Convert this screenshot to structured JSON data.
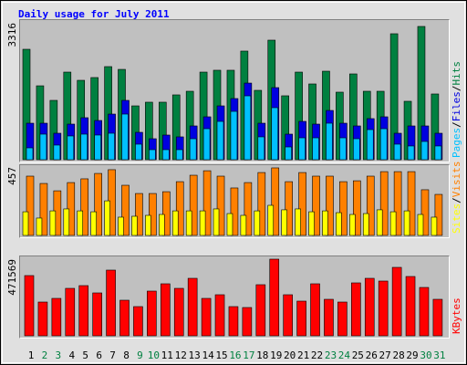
{
  "title": "Daily usage for July 2011",
  "chart_data": [
    {
      "type": "bar",
      "ylim": [
        0,
        3316
      ],
      "yticks": [
        3316
      ],
      "series": [
        {
          "name": "Hits",
          "color": "#008040",
          "values": [
            2675,
            1790,
            1437,
            2122,
            1923,
            1990,
            2255,
            2188,
            1304,
            1393,
            1393,
            1570,
            1658,
            2122,
            2167,
            2167,
            2631,
            1680,
            2896,
            1548,
            2122,
            1835,
            2144,
            1636,
            2078,
            1658,
            1658,
            3051,
            1415,
            3228,
            1592
          ]
        },
        {
          "name": "Files",
          "color": "#0000e0",
          "values": [
            884,
            884,
            641,
            862,
            1017,
            950,
            1105,
            1437,
            663,
            508,
            597,
            553,
            818,
            1039,
            1304,
            1481,
            1856,
            884,
            1746,
            619,
            928,
            862,
            1193,
            884,
            818,
            995,
            1039,
            641,
            818,
            818,
            641
          ]
        },
        {
          "name": "Pages",
          "color": "#00c0ff",
          "values": [
            287,
            619,
            354,
            575,
            619,
            597,
            641,
            1105,
            376,
            243,
            243,
            243,
            508,
            751,
            928,
            1171,
            1547,
            553,
            1260,
            309,
            530,
            530,
            884,
            530,
            508,
            729,
            751,
            376,
            332,
            442,
            332
          ]
        }
      ]
    },
    {
      "type": "bar",
      "ylim": [
        0,
        457
      ],
      "yticks": [
        457
      ],
      "series": [
        {
          "name": "Visits",
          "color": "#ff8000",
          "values": [
            396,
            347,
            298,
            353,
            378,
            414,
            439,
            335,
            280,
            280,
            292,
            359,
            402,
            432,
            396,
            317,
            353,
            420,
            451,
            359,
            420,
            396,
            396,
            359,
            365,
            396,
            426,
            426,
            426,
            305,
            274
          ]
        },
        {
          "name": "Sites",
          "color": "#ffff00",
          "values": [
            158,
            116,
            164,
            177,
            164,
            158,
            231,
            122,
            128,
            134,
            140,
            164,
            164,
            164,
            177,
            146,
            134,
            164,
            201,
            171,
            177,
            158,
            164,
            152,
            140,
            146,
            171,
            158,
            164,
            140,
            122
          ]
        }
      ]
    },
    {
      "type": "bar",
      "ylim": [
        0,
        471569
      ],
      "yticks": [
        471569
      ],
      "categories": [
        "1",
        "2",
        "3",
        "4",
        "5",
        "6",
        "7",
        "8",
        "9",
        "10",
        "11",
        "12",
        "13",
        "14",
        "15",
        "16",
        "17",
        "18",
        "19",
        "20",
        "21",
        "22",
        "23",
        "24",
        "25",
        "26",
        "27",
        "28",
        "29",
        "30",
        "31"
      ],
      "category_colors": [
        "#000000",
        "#008040",
        "#008040",
        "#000000",
        "#000000",
        "#000000",
        "#000000",
        "#000000",
        "#008040",
        "#008040",
        "#000000",
        "#000000",
        "#000000",
        "#000000",
        "#000000",
        "#008040",
        "#008040",
        "#000000",
        "#000000",
        "#000000",
        "#000000",
        "#000000",
        "#008040",
        "#008040",
        "#000000",
        "#000000",
        "#000000",
        "#000000",
        "#000000",
        "#008040",
        "#008040"
      ],
      "series": [
        {
          "name": "KBytes",
          "color": "#ff0000",
          "values": [
            370524,
            207718,
            230174,
            291928,
            308770,
            263858,
            404208,
            218946,
            179648,
            275086,
            319998,
            291928,
            353682,
            230174,
            252630,
            179648,
            174034,
            314384,
            471569,
            252630,
            213332,
            319998,
            224560,
            207718,
            325612,
            353682,
            336840,
            421050,
            364910,
            297542,
            224560
          ]
        }
      ]
    }
  ]
}
